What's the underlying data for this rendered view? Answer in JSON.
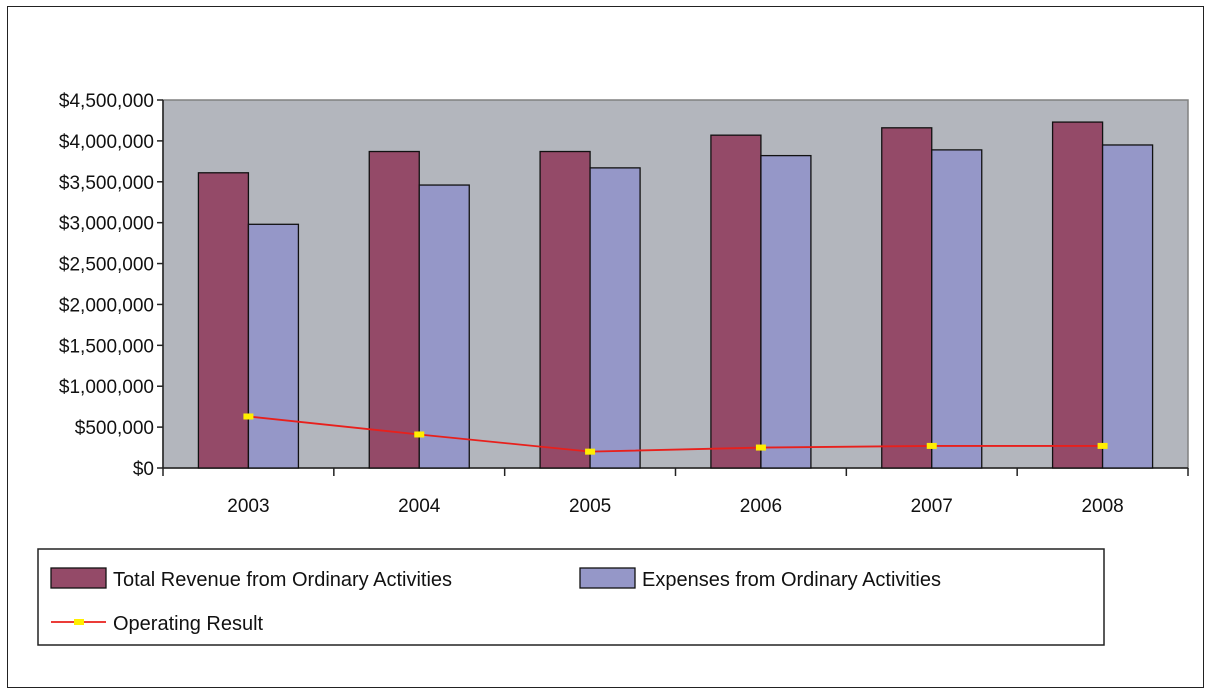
{
  "chart_data": {
    "type": "bar",
    "title": "",
    "xlabel": "",
    "ylabel": "",
    "categories": [
      "2003",
      "2004",
      "2005",
      "2006",
      "2007",
      "2008"
    ],
    "ylim": [
      0,
      4500000
    ],
    "yticks": [
      0,
      500000,
      1000000,
      1500000,
      2000000,
      2500000,
      3000000,
      3500000,
      4000000,
      4500000
    ],
    "ytick_labels": [
      "$0",
      "$500,000",
      "$1,000,000",
      "$1,500,000",
      "$2,000,000",
      "$2,500,000",
      "$3,000,000",
      "$3,500,000",
      "$4,000,000",
      "$4,500,000"
    ],
    "grid": false,
    "legend_position": "bottom",
    "series": [
      {
        "name": "Total Revenue from Ordinary Activities",
        "type": "bar",
        "color": "#944a68",
        "values": [
          3610000,
          3870000,
          3870000,
          4070000,
          4160000,
          4230000
        ]
      },
      {
        "name": "Expenses from Ordinary Activities",
        "type": "bar",
        "color": "#9597c8",
        "values": [
          2980000,
          3460000,
          3670000,
          3820000,
          3890000,
          3950000
        ]
      },
      {
        "name": "Operating Result",
        "type": "line",
        "color": "#e8201c",
        "marker_color": "#ffee00",
        "values": [
          630000,
          410000,
          200000,
          250000,
          270000,
          270000
        ]
      }
    ],
    "plot_background": "#b3b6bd"
  }
}
